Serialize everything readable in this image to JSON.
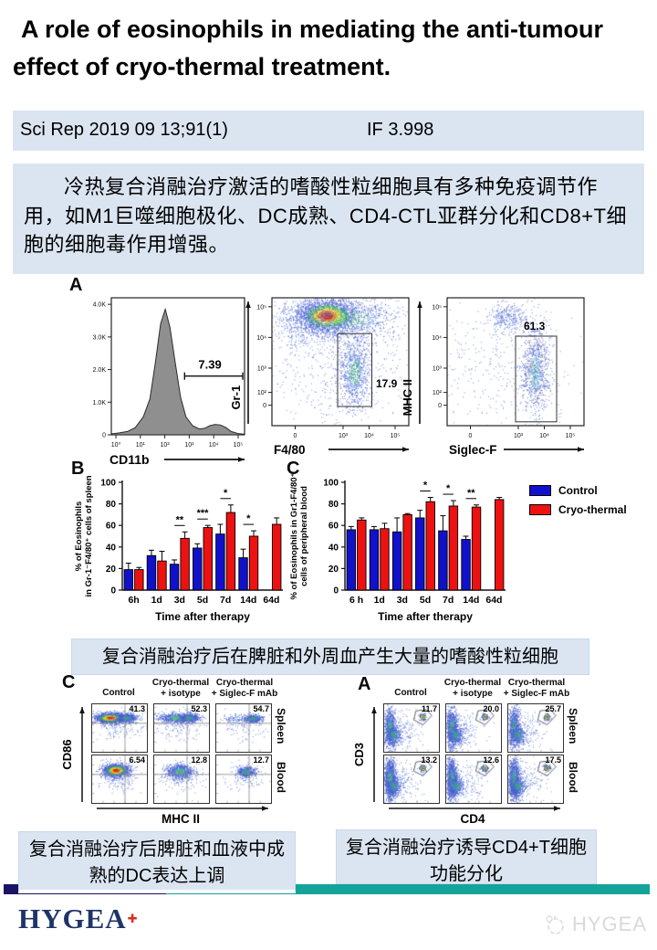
{
  "header": {
    "title_line1": "A role of eosinophils in mediating the anti-tumour",
    "title_line2": "effect of cryo-thermal treatment."
  },
  "citation": {
    "source": "Sci Rep 2019 09 13;91(1)",
    "impact_factor": "IF 3.998"
  },
  "abstract": {
    "text": "冷热复合消融治疗激活的嗜酸性粒细胞具有多种免疫调节作用，如M1巨噬细胞极化、DC成熟、CD4-CTL亚群分化和CD8+T细胞的细胞毒作用增强。"
  },
  "figure_a": {
    "panel_letter": "A",
    "histogram": {
      "xlabel": "CD11b",
      "gate_value": "7.39",
      "yticks": [
        "0",
        "1.0K",
        "2.0K",
        "3.0K",
        "4.0K"
      ],
      "xticks": [
        "10⁰",
        "10¹",
        "10²",
        "10³",
        "10⁴",
        "10⁵"
      ]
    },
    "scatter_f480": {
      "xlabel": "F4/80",
      "ylabel": "Gr-1",
      "gate_value": "17.9",
      "xticks": [
        "0",
        "10³",
        "10⁴",
        "10⁵"
      ],
      "yticks": [
        "0",
        "10²",
        "10³",
        "10⁴",
        "10⁵"
      ]
    },
    "scatter_siglec": {
      "xlabel": "Siglec-F",
      "ylabel": "MHC II",
      "gate_value": "61.3",
      "xticks": [
        "0",
        "10³",
        "10⁴",
        "10⁵"
      ],
      "yticks": [
        "0",
        "10²",
        "10³",
        "10⁴",
        "10⁵"
      ]
    }
  },
  "chart_data": [
    {
      "type": "bar",
      "panel": "B",
      "ylabel_lines": [
        "% of Eosinophils",
        "in Gr-1⁻F4/80⁺ cells of spleen"
      ],
      "xlabel": "Time after therapy",
      "ylim": [
        0,
        100
      ],
      "yticks": [
        0,
        20,
        40,
        60,
        80,
        100
      ],
      "categories": [
        "6h",
        "1d",
        "3d",
        "5d",
        "7d",
        "14d",
        "64d"
      ],
      "series": [
        {
          "name": "Control",
          "color": "#1111cc",
          "values": [
            19,
            32,
            24,
            39,
            52,
            30,
            null
          ],
          "errors": [
            6,
            5,
            4,
            4,
            9,
            8,
            null
          ]
        },
        {
          "name": "Cryo-thermal",
          "color": "#ee1111",
          "values": [
            19,
            27,
            48,
            58,
            72,
            50,
            61
          ],
          "errors": [
            2,
            9,
            6,
            2,
            7,
            5,
            6
          ]
        }
      ],
      "significance": [
        "",
        "",
        "**",
        "***",
        "*",
        "*",
        ""
      ]
    },
    {
      "type": "bar",
      "panel": "C",
      "ylabel_lines": [
        "% of Eosinophils in Gr1-F4/80⁺",
        "cells of peripheral blood"
      ],
      "xlabel": "Time after therapy",
      "ylim": [
        0,
        100
      ],
      "yticks": [
        0,
        20,
        40,
        60,
        80,
        100
      ],
      "categories": [
        "6 h",
        "1d",
        "3d",
        "5d",
        "7d",
        "14d",
        "64d"
      ],
      "series": [
        {
          "name": "Control",
          "color": "#1111cc",
          "values": [
            56,
            56,
            54,
            67,
            55,
            47,
            null
          ],
          "errors": [
            3,
            3,
            13,
            7,
            14,
            3,
            null
          ]
        },
        {
          "name": "Cryo-thermal",
          "color": "#ee1111",
          "values": [
            65,
            57,
            70,
            82,
            78,
            77,
            84
          ],
          "errors": [
            2,
            5,
            1,
            4,
            5,
            2,
            2
          ]
        }
      ],
      "significance": [
        "",
        "",
        "",
        "*",
        "*",
        "**",
        ""
      ]
    }
  ],
  "legend": {
    "items": [
      {
        "label": "Control",
        "color": "#1111cc"
      },
      {
        "label": "Cryo-thermal",
        "color": "#ee1111"
      }
    ]
  },
  "captions": {
    "main": "复合消融治疗后在脾脏和外周血产生大量的嗜酸性粒细胞",
    "bottom_left_line1": "复合消融治疗后脾脏和血液中成",
    "bottom_left_line2": "熟的DC表达上调",
    "bottom_right_line1": "复合消融治疗诱导CD4+T细胞",
    "bottom_right_line2": "功能分化"
  },
  "flow_left": {
    "panel_letter": "C",
    "xlabel": "MHC II",
    "ylabel": "CD86",
    "columns": [
      {
        "line1": "",
        "line2": "Control"
      },
      {
        "line1": "Cryo-thermal",
        "line2": "+ isotype"
      },
      {
        "line1": "Cryo-thermal",
        "line2": "+ Siglec-F mAb"
      }
    ],
    "rows": [
      "Spleen",
      "Blood"
    ],
    "values": [
      [
        "41.3",
        "52.3",
        "54.7"
      ],
      [
        "6.54",
        "12.8",
        "12.7"
      ]
    ]
  },
  "flow_right": {
    "panel_letter": "A",
    "xlabel": "CD4",
    "ylabel": "CD3",
    "columns": [
      {
        "line1": "",
        "line2": "Control"
      },
      {
        "line1": "Cryo-thermal",
        "line2": "+ isotype"
      },
      {
        "line1": "Cryo-thermal",
        "line2": "+ Siglec-F mAb"
      }
    ],
    "rows": [
      "Spleen",
      "Blood"
    ],
    "values": [
      [
        "11.7",
        "20.0",
        "25.7"
      ],
      [
        "13.2",
        "12.6",
        "17.5"
      ]
    ]
  },
  "footer": {
    "logo_text": "HYGEA",
    "watermark_text": "HYGEA",
    "navy": "#1b1464",
    "teal": "#14a39a"
  }
}
